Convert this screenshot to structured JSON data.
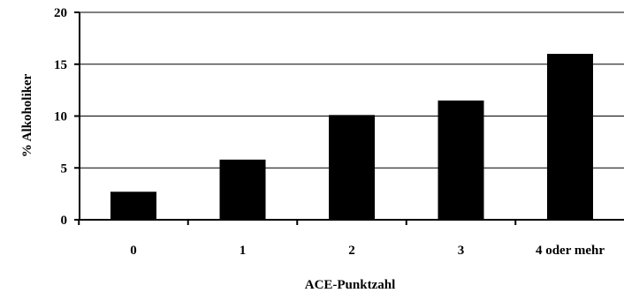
{
  "chart_data": {
    "type": "bar",
    "title": "",
    "xlabel": "ACE-Punktzahl",
    "ylabel": "% Alkoholiker",
    "categories": [
      "0",
      "1",
      "2",
      "3",
      "4 oder mehr"
    ],
    "values": [
      2.7,
      5.8,
      10.1,
      11.5,
      16.0
    ],
    "ylim": [
      0,
      20
    ],
    "yticks": [
      0,
      5,
      10,
      15,
      20
    ],
    "grid": true,
    "legend": "none",
    "bar_color": "#000000"
  }
}
